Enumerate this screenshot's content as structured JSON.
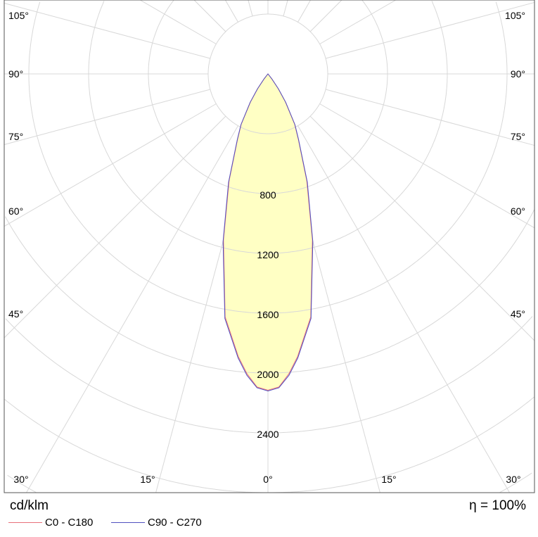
{
  "chart_data": {
    "type": "polar",
    "unit_label": "cd/klm",
    "efficiency_label": "η = 100%",
    "radial_ticks": [
      800,
      1200,
      1600,
      2000,
      2400
    ],
    "radial_step": 400,
    "angle_labels_bottom": [
      "30°",
      "15°",
      "0°",
      "15°",
      "30°"
    ],
    "angle_labels_side": [
      "45°",
      "60°",
      "75°",
      "90°",
      "105°"
    ],
    "angle_step_deg": 15,
    "grid": true,
    "fill_color": "#ffffc4",
    "series": [
      {
        "name": "C0 - C180",
        "color": "#e8707a",
        "angles": [
          0,
          2,
          4,
          6,
          10,
          15,
          20,
          25,
          28,
          32,
          35,
          38,
          40
        ],
        "values": [
          2115,
          2095,
          2010,
          1900,
          1650,
          1150,
          760,
          480,
          380,
          220,
          120,
          40,
          0
        ]
      },
      {
        "name": "C90 - C270",
        "color": "#5050c0",
        "angles": [
          0,
          2,
          4,
          6,
          10,
          15,
          20,
          25,
          28,
          32,
          35,
          38,
          40
        ],
        "values": [
          2120,
          2100,
          2020,
          1910,
          1660,
          1160,
          770,
          485,
          385,
          225,
          122,
          42,
          0
        ]
      }
    ]
  }
}
